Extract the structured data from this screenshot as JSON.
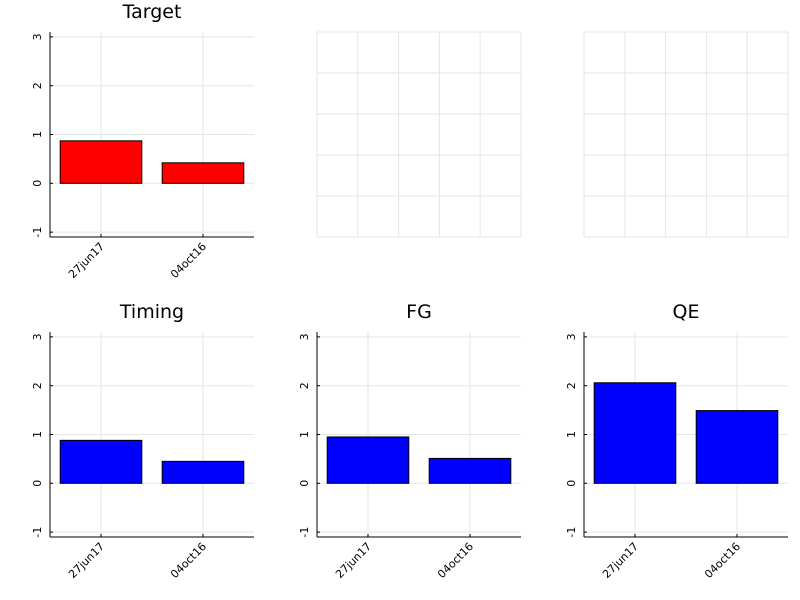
{
  "chart_data": [
    {
      "type": "bar",
      "title": "Target",
      "categories": [
        "27jun17",
        "04oct16"
      ],
      "series": [
        {
          "values": [
            0.87,
            0.42
          ],
          "color": "#ff0000"
        }
      ],
      "ylim": [
        -1.1,
        3.1
      ],
      "yticks": [
        "-1",
        "0",
        "1",
        "2",
        "3"
      ],
      "grid": true
    },
    {
      "type": "bar",
      "title": "",
      "categories": [],
      "series": [],
      "empty": true,
      "grid": true
    },
    {
      "type": "bar",
      "title": "",
      "categories": [],
      "series": [],
      "empty": true,
      "grid": true
    },
    {
      "type": "bar",
      "title": "Timing",
      "categories": [
        "27jun17",
        "04oct16"
      ],
      "series": [
        {
          "values": [
            0.88,
            0.45
          ],
          "color": "#0000ff"
        }
      ],
      "ylim": [
        -1.1,
        3.1
      ],
      "yticks": [
        "-1",
        "0",
        "1",
        "2",
        "3"
      ],
      "grid": true
    },
    {
      "type": "bar",
      "title": "FG",
      "categories": [
        "27jun17",
        "04oct16"
      ],
      "series": [
        {
          "values": [
            0.95,
            0.51
          ],
          "color": "#0000ff"
        }
      ],
      "ylim": [
        -1.1,
        3.1
      ],
      "yticks": [
        "-1",
        "0",
        "1",
        "2",
        "3"
      ],
      "grid": true
    },
    {
      "type": "bar",
      "title": "QE",
      "categories": [
        "27jun17",
        "04oct16"
      ],
      "series": [
        {
          "values": [
            2.06,
            1.49
          ],
          "color": "#0000ff"
        }
      ],
      "ylim": [
        -1.1,
        3.1
      ],
      "yticks": [
        "-1",
        "0",
        "1",
        "2",
        "3"
      ],
      "grid": true
    }
  ]
}
